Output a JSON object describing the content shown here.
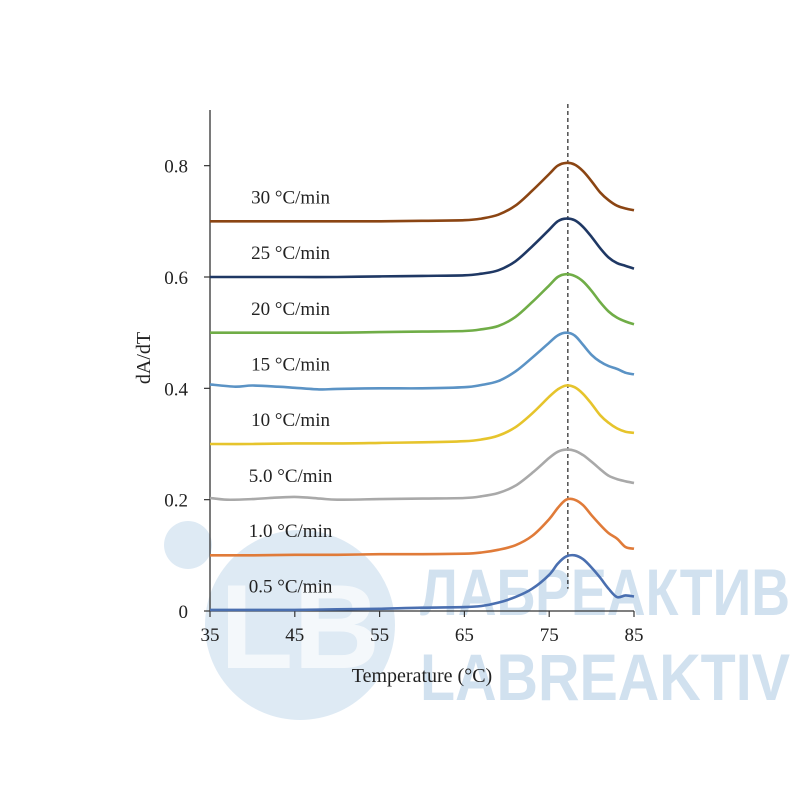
{
  "watermark": {
    "logo_letters": "LB",
    "line1": "ЛАБРЕАКТИВ",
    "line2": "LABREAKTIV",
    "color": "#cfe0ef"
  },
  "chart_data": {
    "type": "line",
    "xlabel": "Temperature (°C)",
    "ylabel": "dA/dT",
    "xlim": [
      35,
      85
    ],
    "ylim": [
      0,
      0.9
    ],
    "xticks": [
      35,
      45,
      55,
      65,
      75,
      85
    ],
    "xtick_labels": [
      "35",
      "45",
      "55",
      "65",
      "75",
      "85"
    ],
    "yticks": [
      0,
      0.2,
      0.4,
      0.6,
      0.8
    ],
    "ytick_labels": [
      "0",
      "0.2",
      "0.4",
      "0.6",
      "0.8"
    ],
    "grid": false,
    "reference_line_x": 77.2,
    "series": [
      {
        "name": "0.5 °C/min",
        "color": "#4a6fb0",
        "label_x": 44.5,
        "label_y": 0.033,
        "x": [
          35,
          40,
          45,
          50,
          55,
          60,
          65,
          67,
          69,
          71,
          73,
          75,
          76,
          77,
          78,
          79,
          80,
          81,
          82,
          83,
          84,
          85
        ],
        "y": [
          0.002,
          0.002,
          0.002,
          0.003,
          0.004,
          0.006,
          0.007,
          0.009,
          0.015,
          0.025,
          0.04,
          0.065,
          0.085,
          0.098,
          0.1,
          0.093,
          0.078,
          0.06,
          0.04,
          0.025,
          0.028,
          0.026
        ]
      },
      {
        "name": "1.0 °C/min",
        "color": "#e07b39",
        "label_x": 44.5,
        "label_y": 0.133,
        "x": [
          35,
          40,
          45,
          50,
          55,
          60,
          65,
          67,
          69,
          71,
          73,
          75,
          76,
          77,
          78,
          79,
          80,
          81,
          82,
          83,
          84,
          85
        ],
        "y": [
          0.1,
          0.1,
          0.101,
          0.101,
          0.102,
          0.102,
          0.103,
          0.105,
          0.11,
          0.118,
          0.135,
          0.165,
          0.185,
          0.2,
          0.2,
          0.19,
          0.172,
          0.155,
          0.14,
          0.13,
          0.115,
          0.112
        ]
      },
      {
        "name": "5.0 °C/min",
        "color": "#a9a9a9",
        "label_x": 44.5,
        "label_y": 0.232,
        "x": [
          35,
          37,
          40,
          42,
          45,
          48,
          50,
          55,
          60,
          65,
          67,
          69,
          71,
          73,
          75,
          76,
          77,
          78,
          79,
          80,
          81,
          82,
          83,
          84,
          85
        ],
        "y": [
          0.203,
          0.2,
          0.201,
          0.203,
          0.205,
          0.202,
          0.2,
          0.201,
          0.202,
          0.203,
          0.206,
          0.212,
          0.225,
          0.248,
          0.275,
          0.286,
          0.29,
          0.288,
          0.28,
          0.268,
          0.255,
          0.243,
          0.237,
          0.233,
          0.23
        ]
      },
      {
        "name": "10 °C/min",
        "color": "#e6c42c",
        "label_x": 44.5,
        "label_y": 0.332,
        "x": [
          35,
          40,
          45,
          50,
          55,
          60,
          65,
          67,
          69,
          71,
          73,
          75,
          76,
          77,
          78,
          79,
          80,
          81,
          82,
          83,
          84,
          85
        ],
        "y": [
          0.3,
          0.3,
          0.301,
          0.301,
          0.302,
          0.303,
          0.305,
          0.308,
          0.315,
          0.33,
          0.355,
          0.385,
          0.398,
          0.405,
          0.402,
          0.39,
          0.372,
          0.352,
          0.338,
          0.328,
          0.322,
          0.32
        ]
      },
      {
        "name": "15 °C/min",
        "color": "#5b93c5",
        "label_x": 44.5,
        "label_y": 0.432,
        "x": [
          35,
          38,
          40,
          43,
          45,
          48,
          50,
          55,
          60,
          65,
          67,
          69,
          71,
          73,
          75,
          76,
          77,
          78,
          79,
          80,
          81,
          82,
          83,
          84,
          85
        ],
        "y": [
          0.407,
          0.403,
          0.405,
          0.403,
          0.401,
          0.398,
          0.399,
          0.4,
          0.4,
          0.402,
          0.406,
          0.413,
          0.43,
          0.455,
          0.482,
          0.495,
          0.5,
          0.495,
          0.478,
          0.46,
          0.448,
          0.44,
          0.435,
          0.428,
          0.425
        ]
      },
      {
        "name": "20 °C/min",
        "color": "#70ad47",
        "label_x": 44.5,
        "label_y": 0.532,
        "x": [
          35,
          40,
          45,
          50,
          55,
          60,
          65,
          67,
          69,
          71,
          73,
          75,
          76,
          77,
          78,
          79,
          80,
          81,
          82,
          83,
          84,
          85
        ],
        "y": [
          0.5,
          0.5,
          0.5,
          0.5,
          0.501,
          0.502,
          0.503,
          0.506,
          0.512,
          0.528,
          0.555,
          0.585,
          0.6,
          0.605,
          0.602,
          0.592,
          0.575,
          0.555,
          0.538,
          0.527,
          0.52,
          0.515
        ]
      },
      {
        "name": "25 °C/min",
        "color": "#1f3864",
        "label_x": 44.5,
        "label_y": 0.632,
        "x": [
          35,
          40,
          45,
          50,
          55,
          60,
          65,
          67,
          69,
          71,
          73,
          75,
          76,
          77,
          78,
          79,
          80,
          81,
          82,
          83,
          84,
          85
        ],
        "y": [
          0.6,
          0.6,
          0.6,
          0.6,
          0.601,
          0.602,
          0.603,
          0.606,
          0.612,
          0.628,
          0.655,
          0.685,
          0.7,
          0.705,
          0.702,
          0.69,
          0.672,
          0.652,
          0.635,
          0.625,
          0.62,
          0.615
        ]
      },
      {
        "name": "30 °C/min",
        "color": "#8b4513",
        "label_x": 44.5,
        "label_y": 0.732,
        "x": [
          35,
          40,
          45,
          50,
          55,
          60,
          65,
          67,
          69,
          71,
          73,
          75,
          76,
          77,
          78,
          79,
          80,
          81,
          82,
          83,
          84,
          85
        ],
        "y": [
          0.7,
          0.7,
          0.7,
          0.7,
          0.7,
          0.701,
          0.702,
          0.705,
          0.712,
          0.728,
          0.755,
          0.785,
          0.8,
          0.805,
          0.802,
          0.79,
          0.772,
          0.752,
          0.738,
          0.728,
          0.723,
          0.72
        ]
      }
    ]
  }
}
